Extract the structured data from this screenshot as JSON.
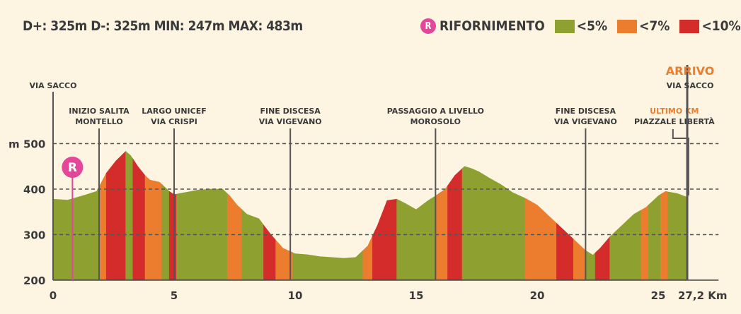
{
  "header": {
    "stats_text": "D+: 325m  D-: 325m  MIN: 247m  MAX: 483m"
  },
  "legend": {
    "refuel_badge": "R",
    "refuel_label": "RIFORNIMENTO",
    "items": [
      {
        "label": "<5%",
        "color": "#8da030"
      },
      {
        "label": "<7%",
        "color": "#ec7d2f"
      },
      {
        "label": "<10%",
        "color": "#d42b2b"
      }
    ]
  },
  "colors": {
    "green": "#8da030",
    "orange": "#ec7d2f",
    "red": "#d42b2b",
    "refuel": "#e4479a",
    "finish": "#ec7d2f",
    "text": "#3a3a3a"
  },
  "chart_data": {
    "type": "area",
    "title": "",
    "xlabel": "",
    "ylabel": "m",
    "xlim": [
      0,
      27.2
    ],
    "ylim": [
      200,
      500
    ],
    "x_ticks": [
      "0",
      "5",
      "10",
      "15",
      "20",
      "25",
      "27,2 Km"
    ],
    "y_ticks": [
      "500",
      "400",
      "300",
      "200"
    ],
    "grid": "dashed at 300, 400, 500",
    "profile": {
      "x": [
        0,
        0.6,
        1.2,
        1.8,
        2.2,
        2.6,
        3.0,
        3.2,
        3.5,
        3.8,
        4.0,
        4.4,
        4.8,
        5.0,
        5.5,
        6.0,
        6.5,
        7.0,
        7.3,
        7.6,
        8.0,
        8.5,
        9.0,
        9.5,
        10.0,
        10.5,
        11.0,
        11.5,
        12.0,
        12.5,
        13.0,
        13.4,
        13.8,
        14.2,
        14.5,
        15.0,
        15.5,
        15.8,
        16.2,
        16.6,
        17.0,
        17.3,
        17.6,
        18.0,
        18.5,
        19.0,
        19.5,
        20.0,
        20.5,
        21.0,
        21.5,
        22.0,
        22.3,
        22.6,
        23.0,
        23.5,
        24.0,
        24.5,
        25.0,
        25.3,
        25.8,
        26.2
      ],
      "y": [
        378,
        376,
        385,
        395,
        435,
        462,
        483,
        474,
        450,
        430,
        420,
        415,
        395,
        388,
        393,
        398,
        400,
        400,
        385,
        365,
        345,
        335,
        300,
        270,
        258,
        256,
        252,
        250,
        248,
        250,
        275,
        320,
        375,
        378,
        370,
        355,
        375,
        385,
        400,
        430,
        450,
        445,
        438,
        425,
        410,
        392,
        380,
        365,
        340,
        315,
        290,
        265,
        255,
        270,
        295,
        320,
        345,
        360,
        385,
        395,
        390,
        382
      ]
    },
    "grade_segments": [
      {
        "from": 0,
        "to": 1.9,
        "grade": "<5%"
      },
      {
        "from": 1.9,
        "to": 2.2,
        "grade": "<7%"
      },
      {
        "from": 2.2,
        "to": 3.0,
        "grade": "<10%"
      },
      {
        "from": 3.0,
        "to": 3.3,
        "grade": "<5%"
      },
      {
        "from": 3.3,
        "to": 3.8,
        "grade": "<10%"
      },
      {
        "from": 3.8,
        "to": 4.5,
        "grade": "<7%"
      },
      {
        "from": 4.5,
        "to": 4.8,
        "grade": "<5%"
      },
      {
        "from": 4.8,
        "to": 5.1,
        "grade": "<10%"
      },
      {
        "from": 5.1,
        "to": 7.2,
        "grade": "<5%"
      },
      {
        "from": 7.2,
        "to": 7.8,
        "grade": "<7%"
      },
      {
        "from": 7.8,
        "to": 8.7,
        "grade": "<5%"
      },
      {
        "from": 8.7,
        "to": 9.2,
        "grade": "<10%"
      },
      {
        "from": 9.2,
        "to": 9.9,
        "grade": "<7%"
      },
      {
        "from": 9.9,
        "to": 12.8,
        "grade": "<5%"
      },
      {
        "from": 12.8,
        "to": 13.2,
        "grade": "<7%"
      },
      {
        "from": 13.2,
        "to": 14.2,
        "grade": "<10%"
      },
      {
        "from": 14.2,
        "to": 15.8,
        "grade": "<5%"
      },
      {
        "from": 15.8,
        "to": 16.3,
        "grade": "<7%"
      },
      {
        "from": 16.3,
        "to": 16.9,
        "grade": "<10%"
      },
      {
        "from": 16.9,
        "to": 19.5,
        "grade": "<5%"
      },
      {
        "from": 19.5,
        "to": 20.8,
        "grade": "<7%"
      },
      {
        "from": 20.8,
        "to": 21.5,
        "grade": "<10%"
      },
      {
        "from": 21.5,
        "to": 22.0,
        "grade": "<7%"
      },
      {
        "from": 22.0,
        "to": 22.4,
        "grade": "<5%"
      },
      {
        "from": 22.4,
        "to": 23.0,
        "grade": "<10%"
      },
      {
        "from": 23.0,
        "to": 24.3,
        "grade": "<5%"
      },
      {
        "from": 24.3,
        "to": 24.6,
        "grade": "<7%"
      },
      {
        "from": 24.6,
        "to": 25.1,
        "grade": "<5%"
      },
      {
        "from": 25.1,
        "to": 25.4,
        "grade": "<7%"
      },
      {
        "from": 25.4,
        "to": 26.2,
        "grade": "<5%"
      }
    ],
    "refuel_km": 0.8,
    "markers": [
      {
        "km": 0,
        "lines": [
          "VIA SACCO"
        ],
        "top": true
      },
      {
        "km": 1.9,
        "lines": [
          "INIZIO SALITA",
          "MONTELLO"
        ]
      },
      {
        "km": 5.0,
        "lines": [
          "LARGO UNICEF",
          "VIA CRISPI"
        ]
      },
      {
        "km": 9.8,
        "lines": [
          "FINE DISCESA",
          "VIA VIGEVANO"
        ]
      },
      {
        "km": 15.8,
        "lines": [
          "PASSAGGIO A LIVELLO",
          "MOROSOLO"
        ]
      },
      {
        "km": 22.0,
        "lines": [
          "FINE DISCESA",
          "VIA VIGEVANO"
        ]
      },
      {
        "km": 25.2,
        "lines": [
          "ULTIMO KM",
          "PIAZZALE LIBERTÀ"
        ],
        "highlight_first": true
      },
      {
        "km": 26.2,
        "lines": [
          "ARRIVO",
          "VIA SACCO"
        ],
        "finish": true
      }
    ]
  }
}
